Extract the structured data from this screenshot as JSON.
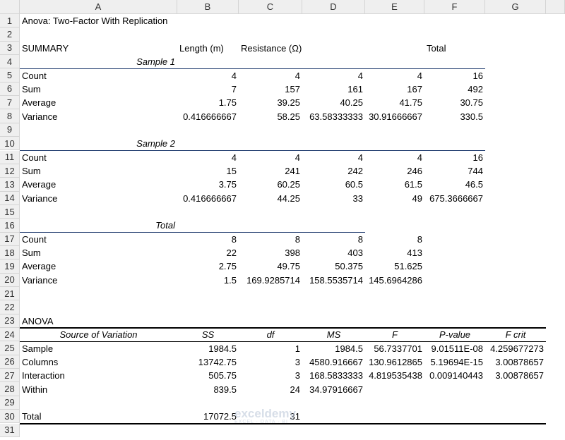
{
  "column_headers": [
    "A",
    "B",
    "C",
    "D",
    "E",
    "F",
    "G"
  ],
  "row_numbers": [
    1,
    2,
    3,
    4,
    5,
    6,
    7,
    8,
    9,
    10,
    11,
    12,
    13,
    14,
    15,
    16,
    17,
    18,
    19,
    20,
    21,
    22,
    23,
    24,
    25,
    26,
    27,
    28,
    29,
    30,
    31
  ],
  "rows": [
    [
      "Anova: Two-Factor With Replication"
    ],
    [],
    [
      "SUMMARY",
      "Length (m)",
      "Resistance (Ω)",
      null,
      null,
      "Total"
    ],
    [
      "Sample 1"
    ],
    [
      "Count",
      "4",
      "4",
      "4",
      "4",
      "16"
    ],
    [
      "Sum",
      "7",
      "157",
      "161",
      "167",
      "492"
    ],
    [
      "Average",
      "1.75",
      "39.25",
      "40.25",
      "41.75",
      "30.75"
    ],
    [
      "Variance",
      "0.416666667",
      "58.25",
      "63.58333333",
      "30.91666667",
      "330.5"
    ],
    [],
    [
      "Sample 2"
    ],
    [
      "Count",
      "4",
      "4",
      "4",
      "4",
      "16"
    ],
    [
      "Sum",
      "15",
      "241",
      "242",
      "246",
      "744"
    ],
    [
      "Average",
      "3.75",
      "60.25",
      "60.5",
      "61.5",
      "46.5"
    ],
    [
      "Variance",
      "0.416666667",
      "44.25",
      "33",
      "49",
      "675.3666667"
    ],
    [],
    [
      "Total"
    ],
    [
      "Count",
      "8",
      "8",
      "8",
      "8"
    ],
    [
      "Sum",
      "22",
      "398",
      "403",
      "413"
    ],
    [
      "Average",
      "2.75",
      "49.75",
      "50.375",
      "51.625"
    ],
    [
      "Variance",
      "1.5",
      "169.9285714",
      "158.5535714",
      "145.6964286"
    ],
    [],
    [],
    [
      "ANOVA"
    ],
    [
      "Source of Variation",
      "SS",
      "df",
      "MS",
      "F",
      "P-value",
      "F crit"
    ],
    [
      "Sample",
      "1984.5",
      "1",
      "1984.5",
      "56.7337701",
      "9.01511E-08",
      "4.259677273"
    ],
    [
      "Columns",
      "13742.75",
      "3",
      "4580.916667",
      "130.9612865",
      "5.19694E-15",
      "3.00878657"
    ],
    [
      "Interaction",
      "505.75",
      "3",
      "168.5833333",
      "4.819535438",
      "0.009140443",
      "3.00878657"
    ],
    [
      "Within",
      "839.5",
      "24",
      "34.97916667"
    ],
    [],
    [
      "Total",
      "17072.5",
      "31"
    ],
    []
  ],
  "watermark": {
    "name": "exceldemy",
    "tagline": "EXCEL · DATA · BI"
  }
}
